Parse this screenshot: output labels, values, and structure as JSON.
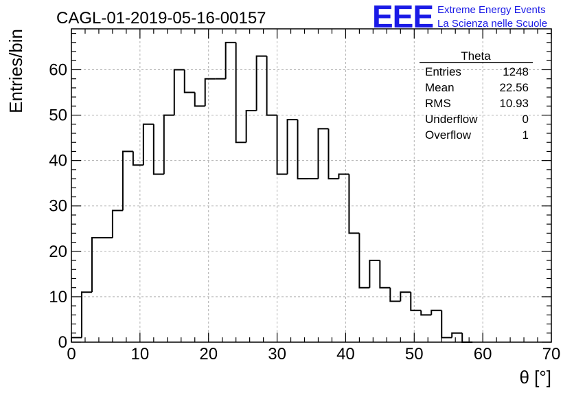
{
  "chart_data": {
    "type": "histogram",
    "title": "CAGL-01-2019-05-16-00157",
    "xlabel": "θ [°]",
    "ylabel": "Entries/bin",
    "xlim": [
      0,
      70
    ],
    "ylim": [
      0,
      69
    ],
    "bin_width": 1.5,
    "bin_start": 0,
    "x_ticks": [
      0,
      10,
      20,
      30,
      40,
      50,
      60,
      70
    ],
    "y_ticks": [
      0,
      10,
      20,
      30,
      40,
      50,
      60
    ],
    "grid": true,
    "values": [
      1,
      11,
      23,
      23,
      29,
      42,
      39,
      48,
      37,
      50,
      60,
      55,
      52,
      58,
      58,
      66,
      44,
      51,
      63,
      50,
      37,
      49,
      36,
      36,
      47,
      36,
      37,
      24,
      12,
      18,
      12,
      9,
      11,
      7,
      6,
      7,
      1,
      2,
      0
    ],
    "line_color": "#000000"
  },
  "stats": {
    "name": "Theta",
    "rows": [
      {
        "label": "Entries",
        "value": "1248"
      },
      {
        "label": "Mean",
        "value": "22.56"
      },
      {
        "label": "RMS",
        "value": "10.93"
      },
      {
        "label": "Underflow",
        "value": "0"
      },
      {
        "label": "Overflow",
        "value": "1"
      }
    ]
  },
  "logo": {
    "mark": "EEE",
    "line1": "Extreme Energy Events",
    "line2": "La Scienza nelle Scuole",
    "color": "#1a1ae6"
  }
}
